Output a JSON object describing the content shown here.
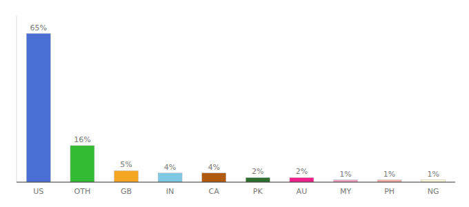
{
  "chart_data": {
    "type": "bar",
    "categories": [
      "US",
      "OTH",
      "GB",
      "IN",
      "CA",
      "PK",
      "AU",
      "MY",
      "PH",
      "NG"
    ],
    "values": [
      65,
      16,
      5,
      4,
      4,
      2,
      2,
      1,
      1,
      1
    ],
    "value_labels": [
      "65%",
      "16%",
      "5%",
      "4%",
      "4%",
      "2%",
      "2%",
      "1%",
      "1%",
      "1%"
    ],
    "colors": [
      "#4a6fd4",
      "#33bb33",
      "#f5a623",
      "#7ec8e3",
      "#b05a10",
      "#2d6e2d",
      "#f0208a",
      "#f0a0c0",
      "#f4b0a8",
      "#f8f5d8"
    ],
    "ylim": [
      0,
      73
    ],
    "data_labels": true,
    "grid": false,
    "tick_labels": "x"
  }
}
